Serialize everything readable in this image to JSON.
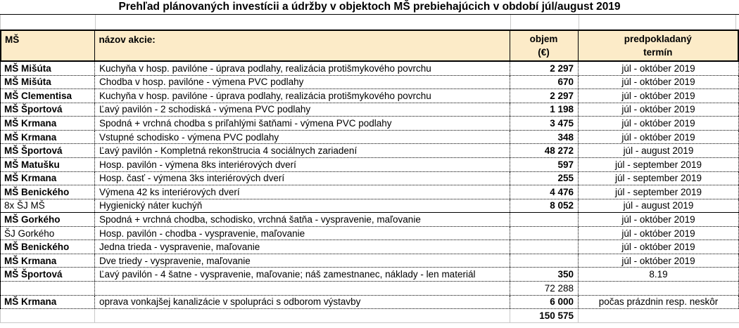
{
  "title": "Prehľad plánovaných investícii a údržby v objektoch MŠ prebiehajúcich v období júl/august 2019",
  "colors": {
    "header_bg": "#fcebc8",
    "border": "#000000",
    "gridline": "#c9c9c9"
  },
  "table": {
    "header": {
      "col_ms": "MŠ",
      "col_akcia": "názov akcie:",
      "col_objem_line1": "objem",
      "col_objem_line2": "(€)",
      "col_termin_line1": "predpokladaný",
      "col_termin_line2": "termín"
    },
    "rows": [
      {
        "ms": "MŠ Mišúta",
        "akcia": "Kuchyňa v hosp. pavilóne - úprava podlahy, realizácia protišmykového povrchu",
        "objem": "2 297",
        "termin": "júl - október 2019"
      },
      {
        "ms": "MŠ Mišúta",
        "akcia": "Chodba v hosp. pavilóne - výmena PVC podlahy",
        "objem": "670",
        "termin": "júl - október 2019"
      },
      {
        "ms": "MŠ Clementisa",
        "akcia": "Kuchyňa v hosp. pavilóne - úprava podlahy, realizácia protišmykového povrchu",
        "objem": "2 297",
        "termin": "júl - október 2019"
      },
      {
        "ms": "MŠ Športová",
        "akcia": "Ľavý pavilón - 2 schodiská - výmena PVC podlahy",
        "objem": "1 198",
        "termin": "júl - október 2019"
      },
      {
        "ms": "MŠ Krmana",
        "akcia": "Spodná + vrchná chodba s priľahlými šatňami - výmena PVC podlahy",
        "objem": "3 475",
        "termin": "júl - október 2019"
      },
      {
        "ms": "MŠ Krmana",
        "akcia": "Vstupné schodisko - výmena PVC podlahy",
        "objem": "348",
        "termin": "júl - október 2019"
      },
      {
        "ms": "MŠ Športová",
        "akcia": "Ľavý pavilón - Kompletná rekonštrucia 4 sociálnych zariadení",
        "objem": "48 272",
        "termin": "júl - august 2019"
      },
      {
        "ms": "MŠ Matušku",
        "akcia": "Hosp. pavilón - výmena 8ks interiérových dverí",
        "objem": "597",
        "termin": "júl - september 2019"
      },
      {
        "ms": "MŠ Krmana",
        "akcia": "Hosp. časť - výmena 3ks interiérových dverí",
        "objem": "255",
        "termin": "júl - september 2019"
      },
      {
        "ms": "MŠ Benického",
        "akcia": "Výmena 42 ks interiérových dverí",
        "objem": "4 476",
        "termin": "júl - september 2019"
      },
      {
        "ms": "8x ŠJ MŠ",
        "akcia": "Hygienický náter kuchýň",
        "objem": "8 052",
        "termin": "júl - august 2019",
        "ms_bold": false,
        "separator_below": true
      },
      {
        "ms": "MŠ Gorkého",
        "akcia": "Spodná + vrchná chodba, schodisko, vrchná šatňa - vyspravenie, maľovanie",
        "objem": "",
        "termin": "júl - október 2019"
      },
      {
        "ms": "ŠJ Gorkého",
        "akcia": "Hosp. pavilón - chodba - vyspravenie, maľovanie",
        "objem": "",
        "termin": "júl - október 2019",
        "ms_bold": false
      },
      {
        "ms": "MŠ Benického",
        "akcia": "Jedna trieda - vyspravenie, maľovanie",
        "objem": "",
        "termin": "júl - október 2019"
      },
      {
        "ms": "MŠ Krmana",
        "akcia": "Dve triedy - vyspravenie, maľovanie",
        "objem": "",
        "termin": "júl - október 2019"
      },
      {
        "ms": "MŠ Športová",
        "akcia": "Ľavý pavilón - 4 šatne - vyspravenie, maľovanie; náš zamestnanec, náklady - len materiál",
        "objem": "350",
        "termin": "8.19"
      },
      {
        "ms": "",
        "akcia": "",
        "objem": "72 288",
        "termin": "",
        "objem_bold": false
      },
      {
        "ms": "MŠ Krmana",
        "akcia": "oprava vonkajšej kanalizácie v spolupráci s odborom výstavby",
        "objem": "6 000",
        "termin": "počas prázdnin resp. neskôr"
      },
      {
        "ms": "",
        "akcia": "",
        "objem": "150 575",
        "termin": "",
        "total_row": true
      }
    ]
  }
}
